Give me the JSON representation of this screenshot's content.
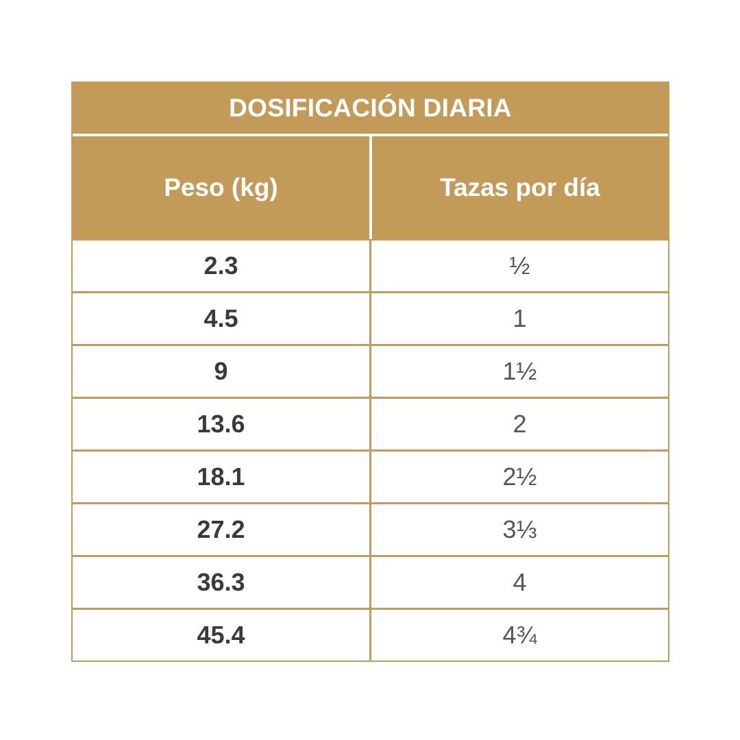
{
  "table": {
    "title": "DOSIFICACIÓN DIARIA",
    "columns": [
      "Peso (kg)",
      "Tazas por día"
    ],
    "rows": [
      {
        "weight": "2.3",
        "cups": "½"
      },
      {
        "weight": "4.5",
        "cups": "1"
      },
      {
        "weight": "9",
        "cups": "1½"
      },
      {
        "weight": "13.6",
        "cups": "2"
      },
      {
        "weight": "18.1",
        "cups": "2½"
      },
      {
        "weight": "27.2",
        "cups": "3⅓"
      },
      {
        "weight": "36.3",
        "cups": "4"
      },
      {
        "weight": "45.4",
        "cups": "4¾"
      }
    ]
  },
  "colors": {
    "header_bg": "#c39a58",
    "header_text": "#ffffff",
    "weight_text": "#3a3a3a",
    "cups_text": "#555555"
  }
}
